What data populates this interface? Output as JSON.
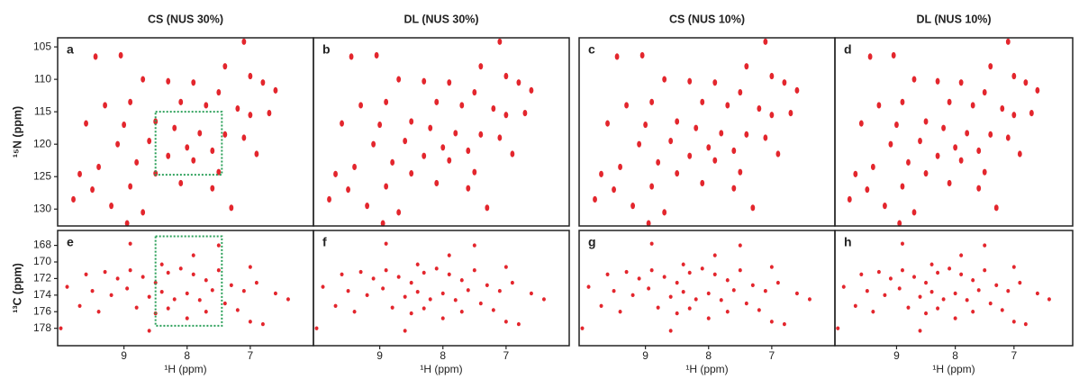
{
  "chart_data": [
    {
      "type": "scatter",
      "title": "CS (NUS 30%)",
      "panel_label": "a",
      "ylabel": "¹⁵N (ppm)",
      "color": "#e3262d",
      "xlim": [
        10.05,
        6.0
      ],
      "ylim": [
        132.6,
        103.6
      ],
      "yticks": [
        105,
        110,
        115,
        120,
        125,
        130
      ],
      "region": {
        "x": [
          8.5,
          7.45
        ],
        "y": [
          115,
          124.7
        ],
        "color": "#2ca05a"
      },
      "x": [
        9.45,
        9.05,
        7.1,
        7.4,
        7.0,
        6.8,
        6.6,
        7.5,
        7.9,
        8.3,
        8.7,
        8.9,
        9.3,
        8.1,
        7.7,
        7.2,
        7.0,
        6.7,
        8.5,
        9.0,
        9.6,
        8.2,
        7.8,
        7.4,
        7.1,
        8.6,
        9.1,
        8.0,
        7.6,
        8.3,
        7.9,
        8.8,
        9.4,
        9.7,
        8.5,
        7.5,
        8.1,
        8.9,
        9.5,
        9.8,
        9.2,
        8.7,
        7.3,
        8.95,
        7.6,
        6.9
      ],
      "y": [
        106.5,
        106.3,
        104.2,
        108,
        109.5,
        110.5,
        111.7,
        112,
        110.5,
        110.3,
        110,
        113.5,
        114,
        113.5,
        114,
        114.5,
        115.5,
        115.2,
        116.5,
        117,
        116.8,
        117.5,
        118.3,
        118.5,
        119,
        119.5,
        120,
        120.5,
        121,
        121.8,
        122.5,
        122.8,
        123.5,
        124.6,
        124.5,
        124.3,
        126,
        126.5,
        127,
        128.5,
        129.5,
        130.5,
        129.8,
        132.2,
        126.8,
        121.5
      ]
    },
    {
      "type": "scatter",
      "title": "DL (NUS 30%)",
      "panel_label": "b",
      "color": "#e3262d",
      "xlim": [
        10.05,
        6.0
      ],
      "ylim": [
        132.6,
        103.6
      ],
      "x": [
        9.45,
        9.05,
        7.1,
        7.4,
        7.0,
        6.8,
        6.6,
        7.5,
        7.9,
        8.3,
        8.7,
        8.9,
        9.3,
        8.1,
        7.7,
        7.2,
        7.0,
        6.7,
        8.5,
        9.0,
        9.6,
        8.2,
        7.8,
        7.4,
        7.1,
        8.6,
        9.1,
        8.0,
        7.6,
        8.3,
        7.9,
        8.8,
        9.4,
        9.7,
        8.5,
        7.5,
        8.1,
        8.9,
        9.5,
        9.8,
        9.2,
        8.7,
        7.3,
        8.95,
        7.6,
        6.9
      ],
      "y": [
        106.5,
        106.3,
        104.2,
        108,
        109.5,
        110.5,
        111.7,
        112,
        110.5,
        110.3,
        110,
        113.5,
        114,
        113.5,
        114,
        114.5,
        115.5,
        115.2,
        116.5,
        117,
        116.8,
        117.5,
        118.3,
        118.5,
        119,
        119.5,
        120,
        120.5,
        121,
        121.8,
        122.5,
        122.8,
        123.5,
        124.6,
        124.5,
        124.3,
        126,
        126.5,
        127,
        128.5,
        129.5,
        130.5,
        129.8,
        132.2,
        126.8,
        121.5
      ]
    },
    {
      "type": "scatter",
      "title": "CS (NUS 10%)",
      "panel_label": "c",
      "color": "#e3262d",
      "xlim": [
        10.05,
        6.0
      ],
      "ylim": [
        132.6,
        103.6
      ],
      "x": [
        9.45,
        9.05,
        7.1,
        7.4,
        7.0,
        6.8,
        6.6,
        7.5,
        7.9,
        8.3,
        8.7,
        8.9,
        9.3,
        8.1,
        7.7,
        7.2,
        7.0,
        6.7,
        8.5,
        9.0,
        9.6,
        8.2,
        7.8,
        7.4,
        7.1,
        8.6,
        9.1,
        8.0,
        7.6,
        8.3,
        7.9,
        8.8,
        9.4,
        9.7,
        8.5,
        7.5,
        8.1,
        8.9,
        9.5,
        9.8,
        9.2,
        8.7,
        7.3,
        8.95,
        7.6,
        6.9
      ],
      "y": [
        106.5,
        106.3,
        104.2,
        108,
        109.5,
        110.5,
        111.7,
        112,
        110.5,
        110.3,
        110,
        113.5,
        114,
        113.5,
        114,
        114.5,
        115.5,
        115.2,
        116.5,
        117,
        116.8,
        117.5,
        118.3,
        118.5,
        119,
        119.5,
        120,
        120.5,
        121,
        121.8,
        122.5,
        122.8,
        123.5,
        124.6,
        124.5,
        124.3,
        126,
        126.5,
        127,
        128.5,
        129.5,
        130.5,
        129.8,
        132.2,
        126.8,
        121.5
      ]
    },
    {
      "type": "scatter",
      "title": "DL (NUS 10%)",
      "panel_label": "d",
      "color": "#e3262d",
      "xlim": [
        10.05,
        6.0
      ],
      "ylim": [
        132.6,
        103.6
      ],
      "x": [
        9.45,
        9.05,
        7.1,
        7.4,
        7.0,
        6.8,
        6.6,
        7.5,
        7.9,
        8.3,
        8.7,
        8.9,
        9.3,
        8.1,
        7.7,
        7.2,
        7.0,
        6.7,
        8.5,
        9.0,
        9.6,
        8.2,
        7.8,
        7.4,
        7.1,
        8.6,
        9.1,
        8.0,
        7.6,
        8.3,
        7.9,
        8.8,
        9.4,
        9.7,
        8.5,
        7.5,
        8.1,
        8.9,
        9.5,
        9.8,
        9.2,
        8.7,
        7.3,
        8.95,
        7.6,
        6.9
      ],
      "y": [
        106.5,
        106.3,
        104.2,
        108,
        109.5,
        110.5,
        111.7,
        112,
        110.5,
        110.3,
        110,
        113.5,
        114,
        113.5,
        114,
        114.5,
        115.5,
        115.2,
        116.5,
        117,
        116.8,
        117.5,
        118.3,
        118.5,
        119,
        119.5,
        120,
        120.5,
        121,
        121.8,
        122.5,
        122.8,
        123.5,
        124.6,
        124.5,
        124.3,
        126,
        126.5,
        127,
        128.5,
        129.5,
        130.5,
        129.8,
        132.2,
        126.8,
        121.5
      ]
    },
    {
      "type": "scatter",
      "panel_label": "e",
      "ylabel": "¹³C (ppm)",
      "xlabel": "¹H (ppm)",
      "color": "#e3262d",
      "xlim": [
        10.05,
        6.0
      ],
      "xticks": [
        9,
        8,
        7
      ],
      "ylim": [
        180.1,
        166.2
      ],
      "yticks": [
        168,
        170,
        172,
        174,
        176,
        178
      ],
      "region": {
        "x": [
          8.5,
          7.45
        ],
        "y": [
          166.9,
          177.7
        ],
        "color": "#2ca05a"
      },
      "x": [
        9.9,
        9.6,
        9.3,
        9.1,
        8.9,
        8.7,
        8.5,
        8.3,
        8.1,
        7.9,
        7.7,
        7.5,
        7.3,
        7.1,
        6.9,
        6.6,
        6.4,
        9.5,
        9.2,
        8.95,
        8.6,
        8.4,
        8.2,
        8.0,
        7.8,
        7.6,
        7.4,
        7.2,
        8.8,
        8.5,
        8.3,
        8.0,
        7.7,
        9.4,
        9.7,
        10.0,
        7.0,
        6.8,
        8.6,
        7.5,
        8.9,
        7.9,
        8.4,
        7.0
      ],
      "y": [
        173,
        171.5,
        171.2,
        172,
        171,
        171.8,
        172.5,
        171.3,
        170.8,
        171.5,
        172.2,
        171,
        172.8,
        173.5,
        172.5,
        173.8,
        174.5,
        173.5,
        174,
        173.2,
        174.2,
        173.6,
        174.5,
        173.8,
        174.6,
        173.4,
        175,
        175.8,
        175.5,
        176.2,
        175.6,
        176.8,
        176,
        176,
        175.3,
        178,
        177.2,
        177.5,
        178.3,
        168,
        167.8,
        169.2,
        170.3,
        170.6
      ]
    },
    {
      "type": "scatter",
      "panel_label": "f",
      "xlabel": "¹H (ppm)",
      "color": "#e3262d",
      "xlim": [
        10.05,
        6.0
      ],
      "xticks": [
        9,
        8,
        7
      ],
      "ylim": [
        180.1,
        166.2
      ],
      "x": [
        9.9,
        9.6,
        9.3,
        9.1,
        8.9,
        8.7,
        8.5,
        8.3,
        8.1,
        7.9,
        7.7,
        7.5,
        7.3,
        7.1,
        6.9,
        6.6,
        6.4,
        9.5,
        9.2,
        8.95,
        8.6,
        8.4,
        8.2,
        8.0,
        7.8,
        7.6,
        7.4,
        7.2,
        8.8,
        8.5,
        8.3,
        8.0,
        7.7,
        9.4,
        9.7,
        10.0,
        7.0,
        6.8,
        8.6,
        7.5,
        8.9,
        7.9,
        8.4,
        7.0
      ],
      "y": [
        173,
        171.5,
        171.2,
        172,
        171,
        171.8,
        172.5,
        171.3,
        170.8,
        171.5,
        172.2,
        171,
        172.8,
        173.5,
        172.5,
        173.8,
        174.5,
        173.5,
        174,
        173.2,
        174.2,
        173.6,
        174.5,
        173.8,
        174.6,
        173.4,
        175,
        175.8,
        175.5,
        176.2,
        175.6,
        176.8,
        176,
        176,
        175.3,
        178,
        177.2,
        177.5,
        178.3,
        168,
        167.8,
        169.2,
        170.3,
        170.6
      ]
    },
    {
      "type": "scatter",
      "panel_label": "g",
      "xlabel": "¹H (ppm)",
      "color": "#e3262d",
      "xlim": [
        10.05,
        6.0
      ],
      "xticks": [
        9,
        8,
        7
      ],
      "ylim": [
        180.1,
        166.2
      ],
      "x": [
        9.9,
        9.6,
        9.3,
        9.1,
        8.9,
        8.7,
        8.5,
        8.3,
        8.1,
        7.9,
        7.7,
        7.5,
        7.3,
        7.1,
        6.9,
        6.6,
        6.4,
        9.5,
        9.2,
        8.95,
        8.6,
        8.4,
        8.2,
        8.0,
        7.8,
        7.6,
        7.4,
        7.2,
        8.8,
        8.5,
        8.3,
        8.0,
        7.7,
        9.4,
        9.7,
        10.0,
        7.0,
        6.8,
        8.6,
        7.5,
        8.9,
        7.9,
        8.4,
        7.0
      ],
      "y": [
        173,
        171.5,
        171.2,
        172,
        171,
        171.8,
        172.5,
        171.3,
        170.8,
        171.5,
        172.2,
        171,
        172.8,
        173.5,
        172.5,
        173.8,
        174.5,
        173.5,
        174,
        173.2,
        174.2,
        173.6,
        174.5,
        173.8,
        174.6,
        173.4,
        175,
        175.8,
        175.5,
        176.2,
        175.6,
        176.8,
        176,
        176,
        175.3,
        178,
        177.2,
        177.5,
        178.3,
        168,
        167.8,
        169.2,
        170.3,
        170.6
      ]
    },
    {
      "type": "scatter",
      "panel_label": "h",
      "xlabel": "¹H (ppm)",
      "color": "#e3262d",
      "xlim": [
        10.05,
        6.0
      ],
      "xticks": [
        9,
        8,
        7
      ],
      "ylim": [
        180.1,
        166.2
      ],
      "x": [
        9.9,
        9.6,
        9.3,
        9.1,
        8.9,
        8.7,
        8.5,
        8.3,
        8.1,
        7.9,
        7.7,
        7.5,
        7.3,
        7.1,
        6.9,
        6.6,
        6.4,
        9.5,
        9.2,
        8.95,
        8.6,
        8.4,
        8.2,
        8.0,
        7.8,
        7.6,
        7.4,
        7.2,
        8.8,
        8.5,
        8.3,
        8.0,
        7.7,
        9.4,
        9.7,
        10.0,
        7.0,
        6.8,
        8.6,
        7.5,
        8.9,
        7.9,
        8.4,
        7.0
      ],
      "y": [
        173,
        171.5,
        171.2,
        172,
        171,
        171.8,
        172.5,
        171.3,
        170.8,
        171.5,
        172.2,
        171,
        172.8,
        173.5,
        172.5,
        173.8,
        174.5,
        173.5,
        174,
        173.2,
        174.2,
        173.6,
        174.5,
        173.8,
        174.6,
        173.4,
        175,
        175.8,
        175.5,
        176.2,
        175.6,
        176.8,
        176,
        176,
        175.3,
        178,
        177.2,
        177.5,
        178.3,
        168,
        167.8,
        169.2,
        170.3,
        170.6
      ]
    }
  ]
}
